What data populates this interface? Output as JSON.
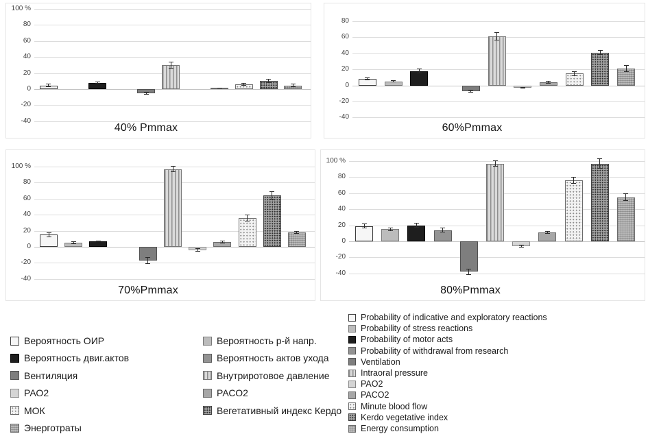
{
  "chart_data": {
    "type": "bar",
    "unit": "%",
    "grid": true,
    "legend_position": "bottom",
    "series": [
      {
        "ru": "Вероятность ОИР",
        "en": "Probability of indicative and exploratory reactions",
        "pattern": "white-outlined",
        "color": "#f6f6f6"
      },
      {
        "ru": "Вероятность р-й напр.",
        "en": "Probability of stress reactions",
        "pattern": "solid-light-gray",
        "color": "#bcbcbc"
      },
      {
        "ru": "Вероятность двиг.актов",
        "en": "Probability of motor acts",
        "pattern": "solid-black",
        "color": "#1e1e1e"
      },
      {
        "ru": "Вероятность актов ухода",
        "en": "Probability of withdrawal from research",
        "pattern": "solid-gray",
        "color": "#939393"
      },
      {
        "ru": "Вентиляция",
        "en": "Ventilation",
        "pattern": "solid-dark-gray",
        "color": "#7e7e7e"
      },
      {
        "ru": "Внутриротовое давление",
        "en": "Intraoral pressure",
        "pattern": "vertical-stripes",
        "color": "#dadada"
      },
      {
        "ru": "РАО2",
        "en": "PAO2",
        "pattern": "solid-pale-gray",
        "color": "#d5d5d5"
      },
      {
        "ru": "РАСО2",
        "en": "PACO2",
        "pattern": "solid-mid-gray",
        "color": "#a7a7a7"
      },
      {
        "ru": "МОК",
        "en": "Minute blood flow",
        "pattern": "light-dots",
        "color": "#f2f2f2"
      },
      {
        "ru": "Вегетативный индекс Кердо",
        "en": "Kerdo vegetative index",
        "pattern": "dense-dots",
        "color": "#a2a2a2"
      },
      {
        "ru": "Энерготраты",
        "en": "Energy consumption",
        "pattern": "fine-texture",
        "color": "#bcbcbc"
      }
    ],
    "charts": [
      {
        "title": "40% Pmmax",
        "ylim": [
          -50,
          110
        ],
        "yticks": [
          {
            "label": "100 %",
            "v": 100
          },
          {
            "label": "80",
            "v": 80
          },
          {
            "label": "60",
            "v": 60
          },
          {
            "label": "40",
            "v": 40
          },
          {
            "label": "20",
            "v": 20
          },
          {
            "label": "0",
            "v": 0
          },
          {
            "label": "-20",
            "v": -20
          },
          {
            "label": "-40",
            "v": -40
          }
        ],
        "values": [
          4.5,
          0,
          8,
          0,
          -5,
          30,
          0,
          1.5,
          6,
          10,
          4.5
        ],
        "errors": [
          2,
          0,
          1.5,
          0,
          2,
          4,
          0,
          0.5,
          1.5,
          2.5,
          2
        ]
      },
      {
        "title": "60%Pmmax",
        "ylim": [
          -50,
          90
        ],
        "yticks": [
          {
            "label": "80",
            "v": 80
          },
          {
            "label": "60",
            "v": 60
          },
          {
            "label": "40",
            "v": 40
          },
          {
            "label": "20",
            "v": 20
          },
          {
            "label": "0",
            "v": 0
          },
          {
            "label": "-20",
            "v": -20
          },
          {
            "label": "-40",
            "v": -40
          }
        ],
        "values": [
          8,
          5,
          18,
          0,
          -7,
          61,
          -3,
          4,
          15,
          41,
          21
        ],
        "errors": [
          1.5,
          1.5,
          3,
          0,
          1.5,
          5,
          1,
          2,
          3,
          3,
          4
        ]
      },
      {
        "title": "70%Pmmax",
        "ylim": [
          -50,
          110
        ],
        "yticks": [
          {
            "label": "100 %",
            "v": 100
          },
          {
            "label": "80",
            "v": 80
          },
          {
            "label": "60",
            "v": 60
          },
          {
            "label": "40",
            "v": 40
          },
          {
            "label": "20",
            "v": 20
          },
          {
            "label": "0",
            "v": 0
          },
          {
            "label": "-20",
            "v": -20
          },
          {
            "label": "-40",
            "v": -40
          }
        ],
        "values": [
          15,
          5,
          7,
          0,
          -17,
          97,
          -4,
          6,
          36,
          64,
          18
        ],
        "errors": [
          3,
          1.5,
          1,
          0,
          4,
          4,
          2,
          1.5,
          4,
          5,
          2
        ]
      },
      {
        "title": "80%Pmmax",
        "ylim": [
          -50,
          110
        ],
        "yticks": [
          {
            "label": "100 %",
            "v": 100
          },
          {
            "label": "80",
            "v": 80
          },
          {
            "label": "60",
            "v": 60
          },
          {
            "label": "40",
            "v": 40
          },
          {
            "label": "20",
            "v": 20
          },
          {
            "label": "0",
            "v": 0
          },
          {
            "label": "-20",
            "v": -20
          },
          {
            "label": "-40",
            "v": -40
          }
        ],
        "values": [
          19,
          15,
          20,
          14,
          -38,
          97,
          -6,
          11,
          76,
          97,
          55
        ],
        "errors": [
          3,
          2,
          3,
          3,
          4,
          4,
          2,
          2,
          4,
          6,
          5
        ]
      }
    ],
    "legend": {
      "ru_col1": [
        0,
        2,
        4,
        6,
        8,
        10
      ],
      "ru_col2": [
        1,
        3,
        5,
        7,
        9
      ],
      "en_order": [
        0,
        1,
        2,
        3,
        4,
        5,
        6,
        7,
        8,
        9,
        10
      ]
    }
  },
  "colors": {
    "grid": "#dcdcdc",
    "zero_line": "#c4c4c4",
    "panel_border": "#e4e4e4",
    "text": "#1a1a1a",
    "error_bar": "#2b2b2b"
  }
}
